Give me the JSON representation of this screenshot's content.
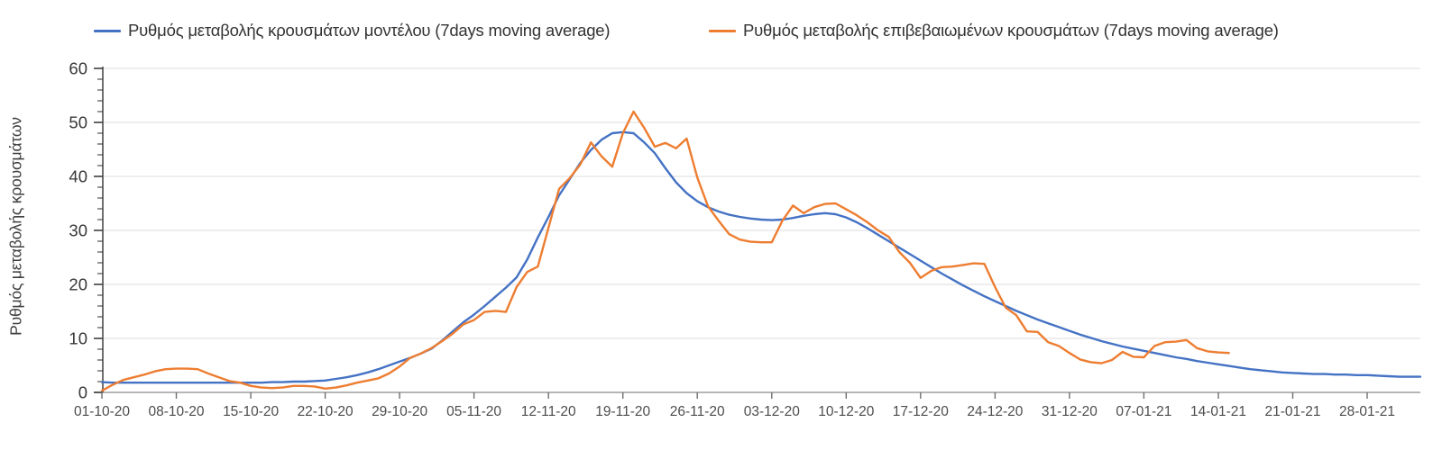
{
  "chart": {
    "y_axis_title": "Ρυθμός μεταβολής κρουσμάτων",
    "legend": [
      {
        "label": "Ρυθμός μεταβολής κρουσμάτων μοντέλου (7days moving average)",
        "color": "#4472C4"
      },
      {
        "label": "Ρυθμός μεταβολής επιβεβαιωμένων κρουσμάτων (7days moving average)",
        "color": "#ED7D31"
      }
    ]
  },
  "chart_data": {
    "type": "line",
    "title": "",
    "xlabel": "",
    "ylabel": "Ρυθμός μεταβολής κρουσμάτων",
    "ylim": [
      0,
      60
    ],
    "y_ticks": [
      0,
      10,
      20,
      30,
      40,
      50,
      60
    ],
    "y_minor_step": 2,
    "grid": "horizontal",
    "legend_position": "top",
    "x_unit": "day",
    "x_start_label": "01-10-20",
    "x_tick_interval_days": 7,
    "x_tick_labels": [
      "01-10-20",
      "08-10-20",
      "15-10-20",
      "22-10-20",
      "29-10-20",
      "05-11-20",
      "12-11-20",
      "19-11-20",
      "26-11-20",
      "03-12-20",
      "10-12-20",
      "17-12-20",
      "24-12-20",
      "31-12-20",
      "07-01-21",
      "14-01-21",
      "21-01-21",
      "28-01-21"
    ],
    "series": [
      {
        "name": "Ρυθμός μεταβολής κρουσμάτων μοντέλου (7days moving average)",
        "color": "#4472C4",
        "start_day": 0,
        "values": [
          1.9,
          1.8,
          1.8,
          1.8,
          1.8,
          1.8,
          1.8,
          1.8,
          1.8,
          1.8,
          1.8,
          1.8,
          1.8,
          1.8,
          1.8,
          1.8,
          1.9,
          1.9,
          2.0,
          2.0,
          2.1,
          2.2,
          2.5,
          2.8,
          3.2,
          3.7,
          4.3,
          5.0,
          5.7,
          6.4,
          7.2,
          8.1,
          9.6,
          11.3,
          13.0,
          14.4,
          16.0,
          17.7,
          19.4,
          21.3,
          24.6,
          28.7,
          32.5,
          36.5,
          39.5,
          42.5,
          44.9,
          46.8,
          48.0,
          48.2,
          48.0,
          46.3,
          44.3,
          41.5,
          38.9,
          36.9,
          35.4,
          34.3,
          33.5,
          32.9,
          32.5,
          32.2,
          32.0,
          31.9,
          32.0,
          32.3,
          32.7,
          33.0,
          33.2,
          33.0,
          32.4,
          31.5,
          30.4,
          29.2,
          28.0,
          26.8,
          25.6,
          24.4,
          23.2,
          22.0,
          20.9,
          19.8,
          18.8,
          17.8,
          16.9,
          16.0,
          15.1,
          14.3,
          13.5,
          12.8,
          12.1,
          11.4,
          10.7,
          10.1,
          9.5,
          9.0,
          8.5,
          8.1,
          7.7,
          7.3,
          6.9,
          6.5,
          6.2,
          5.8,
          5.5,
          5.2,
          4.9,
          4.6,
          4.3,
          4.1,
          3.9,
          3.7,
          3.6,
          3.5,
          3.4,
          3.4,
          3.3,
          3.3,
          3.2,
          3.2,
          3.1,
          3.0,
          2.9,
          2.9,
          2.9
        ]
      },
      {
        "name": "Ρυθμός μεταβολής επιβεβαιωμένων κρουσμάτων (7days moving average)",
        "color": "#ED7D31",
        "start_day": 0,
        "values": [
          0.3,
          1.4,
          2.3,
          2.8,
          3.3,
          3.9,
          4.3,
          4.4,
          4.4,
          4.3,
          3.5,
          2.8,
          2.1,
          1.8,
          1.2,
          0.9,
          0.8,
          0.9,
          1.2,
          1.2,
          1.1,
          0.7,
          0.9,
          1.3,
          1.8,
          2.2,
          2.6,
          3.5,
          4.8,
          6.4,
          7.2,
          8.2,
          9.5,
          10.9,
          12.6,
          13.4,
          14.9,
          15.1,
          14.9,
          19.5,
          22.3,
          23.3,
          30.5,
          37.7,
          39.7,
          42.2,
          46.3,
          43.7,
          41.8,
          48.0,
          52.0,
          49.0,
          45.5,
          46.2,
          45.2,
          47.0,
          39.8,
          34.5,
          31.8,
          29.3,
          28.3,
          27.9,
          27.8,
          27.8,
          31.8,
          34.6,
          33.2,
          34.3,
          34.9,
          35.0,
          33.9,
          32.8,
          31.5,
          30.0,
          28.8,
          26.0,
          24.0,
          21.2,
          22.5,
          23.2,
          23.3,
          23.6,
          23.9,
          23.8,
          19.5,
          15.7,
          14.3,
          11.3,
          11.2,
          9.3,
          8.6,
          7.3,
          6.1,
          5.6,
          5.4,
          6.0,
          7.5,
          6.6,
          6.5,
          8.6,
          9.3,
          9.4,
          9.7,
          8.2,
          7.6,
          7.4,
          7.3
        ]
      }
    ]
  }
}
